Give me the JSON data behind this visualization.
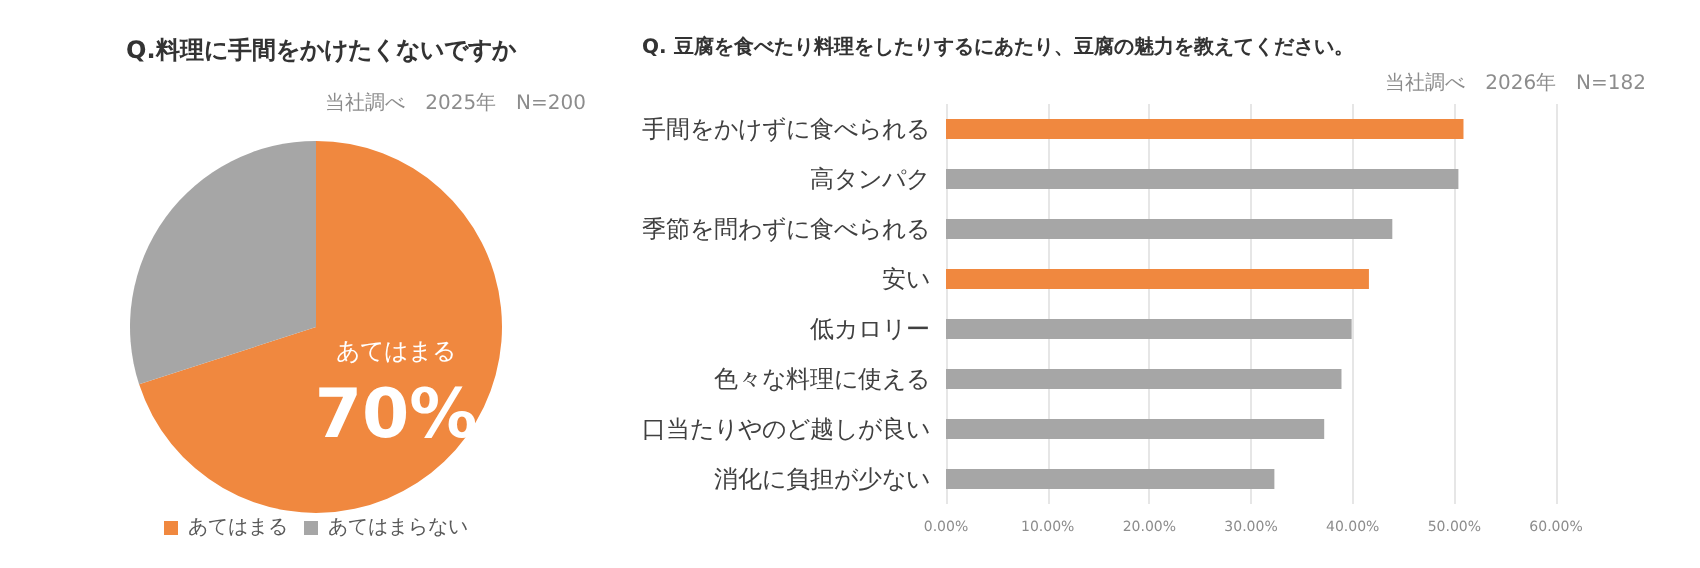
{
  "chart_data": [
    {
      "type": "pie",
      "title": "Q.料理に手間をかけたくないですか",
      "subtitle": "当社調べ　2025年　N=200",
      "categories": [
        "あてはまる",
        "あてはまらない"
      ],
      "values": [
        70,
        30
      ],
      "colors": [
        "#f0883f",
        "#a6a6a6"
      ],
      "value_labels": [
        "70%",
        null
      ],
      "legend": "bottom"
    },
    {
      "type": "bar",
      "orientation": "horizontal",
      "title": "Q. 豆腐を食べたり料理をしたりするにあたり、豆腐の魅力を教えてください。",
      "subtitle": "当社調べ　2026年　N=182",
      "categories": [
        "手間をかけずに食べられる",
        "高タンパク",
        "季節を問わずに食べられる",
        "安い",
        "低カロリー",
        "色々な料理に使える",
        "口当たりやのど越しが良い",
        "消化に負担が少ない"
      ],
      "values": [
        50.9,
        50.4,
        43.9,
        41.6,
        39.9,
        38.9,
        37.2,
        32.3
      ],
      "colors": [
        "#f0883f",
        "#a6a6a6",
        "#a6a6a6",
        "#f0883f",
        "#a6a6a6",
        "#a6a6a6",
        "#a6a6a6",
        "#a6a6a6"
      ],
      "xlim": [
        0,
        60
      ],
      "xticks": [
        {
          "value": 0,
          "label": "0.00%"
        },
        {
          "value": 10,
          "label": "10.00%"
        },
        {
          "value": 20,
          "label": "20.00%"
        },
        {
          "value": 30,
          "label": "30.00%"
        },
        {
          "value": 40,
          "label": "40.00%"
        },
        {
          "value": 50,
          "label": "50.00%"
        },
        {
          "value": 60,
          "label": "60.00%"
        }
      ],
      "grid": "x",
      "legend": false
    }
  ]
}
